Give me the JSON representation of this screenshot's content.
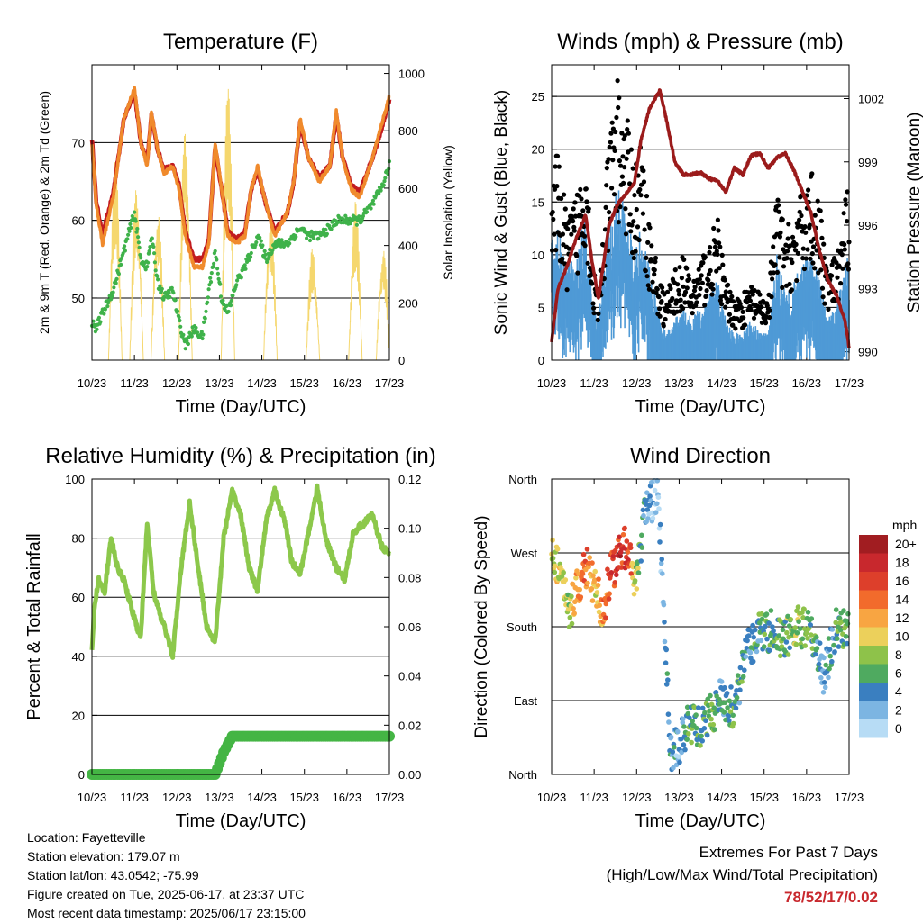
{
  "colors": {
    "temp_2m": "#c21b1f",
    "temp_9m": "#f08a2c",
    "dewpoint": "#3fb24a",
    "solar": "#f5d76e",
    "wind": "#4f9ad6",
    "gust": "#000000",
    "pressure": "#9b1b1b",
    "rh": "#8cc84b",
    "precip": "#44b544",
    "extremes_values": "#c8282d"
  },
  "x_ticks": [
    "10/23",
    "11/23",
    "12/23",
    "13/23",
    "14/23",
    "15/23",
    "16/23",
    "17/23"
  ],
  "x_label": "Time (Day/UTC)",
  "chart_data": [
    {
      "type": "line",
      "title": "Temperature (F)",
      "xlabel": "Time (Day/UTC)",
      "ylabel": "2m & 9m T (Red, Orange) & 2m Td (Green)",
      "y2label": "Solar Insolation (Yellow)",
      "ylim": [
        42,
        80
      ],
      "y_ticks": [
        50,
        60,
        70
      ],
      "y2lim": [
        0,
        1030
      ],
      "y2_ticks": [
        0,
        200,
        400,
        600,
        800,
        1000
      ],
      "x_days": [
        0,
        0.1,
        0.25,
        0.5,
        0.75,
        1.0,
        1.15,
        1.3,
        1.4,
        1.55,
        1.7,
        1.9,
        2.05,
        2.2,
        2.4,
        2.6,
        2.75,
        2.9,
        3.05,
        3.2,
        3.4,
        3.6,
        3.75,
        3.9,
        4.1,
        4.3,
        4.6,
        4.75,
        4.9,
        5.1,
        5.35,
        5.6,
        5.75,
        5.9,
        6.1,
        6.3,
        6.6,
        6.8,
        7.0
      ],
      "series": [
        {
          "name": "2m T",
          "values": [
            70,
            62,
            57,
            63,
            73,
            77,
            70,
            67,
            74,
            69,
            66,
            67,
            64,
            58,
            54,
            54,
            57,
            70,
            64,
            58,
            57,
            58,
            64,
            67,
            62,
            58,
            61,
            65,
            73,
            68,
            65,
            67,
            74,
            68,
            64,
            63,
            68,
            72,
            76
          ]
        },
        {
          "name": "9m T",
          "values": [
            70.5,
            62.5,
            58,
            63.5,
            73,
            76.5,
            70,
            67.5,
            73.5,
            69,
            66.5,
            67,
            64.5,
            58.5,
            55,
            55,
            57.5,
            69.5,
            64,
            58.5,
            57.5,
            58.5,
            64,
            66.5,
            62,
            58.5,
            61,
            65,
            72.5,
            68,
            65.5,
            67,
            73.5,
            68,
            64.5,
            63.5,
            68,
            71.5,
            75.5
          ]
        },
        {
          "name": "2m Td",
          "values": [
            47,
            46,
            48,
            51,
            56,
            61,
            55,
            54,
            58,
            52,
            50,
            51,
            47,
            44,
            46,
            45,
            51,
            56,
            50,
            48,
            52,
            54,
            56,
            58,
            55,
            57,
            57,
            58,
            59,
            58,
            58,
            59,
            60,
            60,
            60,
            60,
            62,
            64,
            67
          ]
        }
      ],
      "solar": {
        "name": "Solar Insolation",
        "peak_days": [
          0.55,
          1.05,
          1.55,
          2.2,
          3.2,
          4.2,
          5.2,
          6.2,
          6.85
        ],
        "peak_values": [
          700,
          640,
          580,
          880,
          960,
          560,
          420,
          560,
          430
        ]
      }
    },
    {
      "type": "scatter",
      "title": "Winds (mph) & Pressure (mb)",
      "xlabel": "Time (Day/UTC)",
      "ylabel": "Sonic Wind & Gust (Blue, Black)",
      "y2label": "Station Pressure (Maroon)",
      "ylim": [
        0,
        28
      ],
      "y_ticks": [
        0,
        5,
        10,
        15,
        20,
        25
      ],
      "y2lim": [
        989.6,
        1003.6
      ],
      "y2_ticks": [
        990,
        993,
        996,
        999,
        1002
      ],
      "x_days": [
        0,
        0.15,
        0.35,
        0.6,
        0.8,
        0.95,
        1.1,
        1.35,
        1.55,
        1.75,
        1.95,
        2.1,
        2.3,
        2.55,
        2.7,
        2.9,
        3.1,
        3.3,
        3.5,
        3.7,
        3.9,
        4.1,
        4.3,
        4.5,
        4.7,
        4.9,
        5.1,
        5.3,
        5.5,
        5.7,
        5.9,
        6.1,
        6.3,
        6.5,
        6.7,
        6.9,
        7.0
      ],
      "wind": [
        9,
        10,
        7,
        8,
        11,
        5,
        3,
        10,
        13,
        11,
        8,
        10,
        7,
        3,
        2,
        3,
        4,
        3,
        4,
        5,
        6,
        3,
        2,
        2,
        3,
        2,
        2,
        8,
        5,
        6,
        7,
        8,
        6,
        3,
        4,
        7,
        8
      ],
      "gust": [
        14,
        16,
        11,
        13,
        18,
        8,
        5,
        17,
        22,
        19,
        15,
        17,
        11,
        6,
        5,
        7,
        8,
        6,
        8,
        9,
        11,
        6,
        5,
        5,
        6,
        5,
        5,
        13,
        10,
        11,
        13,
        15,
        12,
        7,
        8,
        12,
        14
      ],
      "pressure": {
        "name": "Station Pressure",
        "values": [
          990.5,
          993,
          994,
          995.5,
          996.5,
          994.3,
          992.5,
          996,
          997,
          997.5,
          998,
          1000,
          1001.5,
          1002.4,
          1001,
          999,
          998.4,
          998.4,
          998.5,
          998.2,
          998.1,
          997.6,
          998.7,
          998.4,
          999.3,
          999.4,
          998.7,
          999.2,
          999.4,
          998.6,
          997.6,
          996.6,
          994.8,
          993.4,
          992.7,
          991.5,
          990.2
        ]
      }
    },
    {
      "type": "line",
      "title": "Relative Humidity (%) & Precipitation (in)",
      "xlabel": "Time (Day/UTC)",
      "ylabel": "Percent & Total Rainfall",
      "ylim": [
        0,
        100
      ],
      "y_ticks": [
        0,
        20,
        40,
        60,
        80,
        100
      ],
      "y2lim": [
        0,
        0.12
      ],
      "y2_ticks": [
        "0.00",
        "0.02",
        "0.04",
        "0.06",
        "0.08",
        "0.10",
        "0.12"
      ],
      "x_days": [
        0,
        0.05,
        0.15,
        0.3,
        0.45,
        0.6,
        0.75,
        0.9,
        1.05,
        1.15,
        1.3,
        1.45,
        1.6,
        1.75,
        1.9,
        2.1,
        2.3,
        2.5,
        2.7,
        2.9,
        3.1,
        3.3,
        3.5,
        3.7,
        3.9,
        4.1,
        4.3,
        4.55,
        4.7,
        4.9,
        5.1,
        5.3,
        5.5,
        5.75,
        5.95,
        6.15,
        6.4,
        6.6,
        6.8,
        7.0
      ],
      "series": [
        {
          "name": "RH",
          "values": [
            42,
            55,
            66,
            62,
            80,
            70,
            66,
            58,
            50,
            47,
            85,
            62,
            54,
            48,
            40,
            70,
            92,
            70,
            50,
            45,
            80,
            96,
            88,
            70,
            62,
            86,
            96,
            85,
            72,
            68,
            82,
            97,
            80,
            70,
            66,
            82,
            85,
            88,
            78,
            74
          ]
        },
        {
          "name": "Precip",
          "values": [
            0,
            0,
            0,
            0,
            0,
            0,
            0,
            0,
            0,
            0,
            0,
            0,
            0,
            0,
            0,
            0,
            0,
            0,
            0,
            0,
            0.009,
            0.0155,
            0.0155,
            0.0155,
            0.0155,
            0.0155,
            0.0155,
            0.0155,
            0.0155,
            0.0155,
            0.0155,
            0.0155,
            0.0155,
            0.0155,
            0.0155,
            0.0155,
            0.0155,
            0.0155,
            0.0155,
            0.0155
          ]
        }
      ]
    },
    {
      "type": "scatter",
      "title": "Wind Direction",
      "xlabel": "Time (Day/UTC)",
      "ylabel": "Direction (Colored By Speed)",
      "y_ticks": [
        "North",
        "East",
        "South",
        "West",
        "North"
      ],
      "ylim": [
        0,
        360
      ],
      "x_days": [
        0,
        0.2,
        0.4,
        0.6,
        0.8,
        1.0,
        1.2,
        1.4,
        1.6,
        1.8,
        2.0,
        2.2,
        2.5,
        2.8,
        3.0,
        3.2,
        3.5,
        3.8,
        4.0,
        4.3,
        4.6,
        4.9,
        5.2,
        5.5,
        5.8,
        6.1,
        6.4,
        6.7,
        6.9
      ],
      "direction": [
        270,
        250,
        195,
        225,
        255,
        230,
        200,
        245,
        270,
        280,
        230,
        320,
        345,
        25,
        35,
        60,
        60,
        75,
        95,
        80,
        150,
        175,
        175,
        165,
        180,
        175,
        120,
        180,
        175
      ],
      "speed": [
        9,
        10,
        8,
        12,
        14,
        11,
        12,
        16,
        17,
        16,
        8,
        3,
        1,
        4,
        3,
        6,
        5,
        7,
        4,
        6,
        4,
        5,
        6,
        7,
        8,
        6,
        3,
        5,
        7
      ],
      "legend_title": "mph",
      "legend": [
        "20+",
        "18",
        "16",
        "14",
        "12",
        "10",
        "8",
        "6",
        "4",
        "2",
        "0"
      ],
      "legend_colors": [
        "#a11d21",
        "#c8282d",
        "#dd3f2b",
        "#f26b2c",
        "#f8a542",
        "#ecd05b",
        "#8ec24a",
        "#4faa60",
        "#3a7fc0",
        "#7cb5e2",
        "#b7dcf5"
      ]
    }
  ],
  "info": {
    "location": "Location: Fayetteville",
    "elevation": "Station elevation: 179.07 m",
    "latlon": "Station lat/lon: 43.0542; -75.99",
    "created": "Figure created on Tue, 2025-06-17, at 23:37 UTC",
    "recent": "Most recent data timestamp: 2025/06/17 23:15:00"
  },
  "extremes": {
    "title": "Extremes For Past 7 Days",
    "subtitle": "(High/Low/Max Wind/Total Precipitation)",
    "values": "78/52/17/0.02"
  }
}
